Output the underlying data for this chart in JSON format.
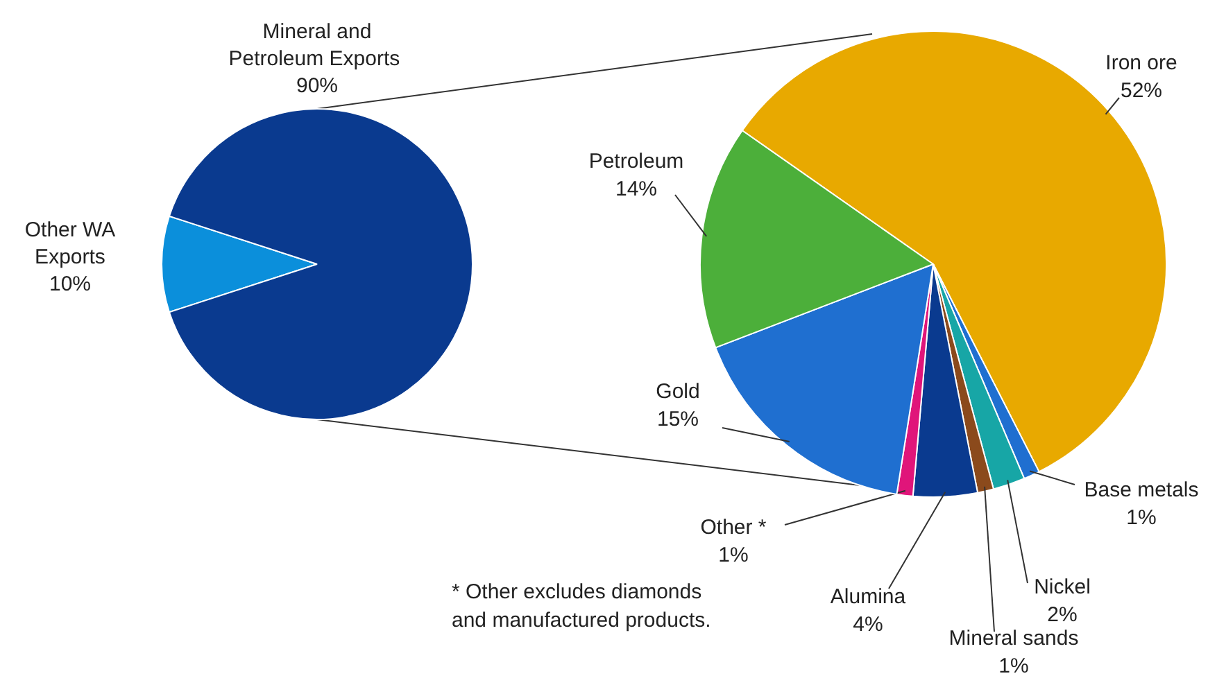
{
  "chart_data": [
    {
      "type": "pie",
      "categories": [
        "Other WA\nExports",
        "Mineral and\nPetroleum  Exports"
      ],
      "values": [
        10,
        90
      ],
      "value_labels": [
        "10%",
        "90%"
      ],
      "colors": [
        "#0b8fdb",
        "#0a3a8f"
      ]
    },
    {
      "type": "pie",
      "categories": [
        "Iron ore",
        "Base metals",
        "Nickel",
        "Mineral sands",
        "Alumina",
        "Other *",
        "Gold",
        "Petroleum"
      ],
      "values": [
        52,
        1,
        2,
        1,
        4,
        1,
        15,
        14
      ],
      "value_labels": [
        "52%",
        "1%",
        "2%",
        "1%",
        "4%",
        "1%",
        "15%",
        "14%"
      ],
      "colors": [
        "#e8a900",
        "#1f6fd0",
        "#17a6a6",
        "#8b4a1c",
        "#0a3a8f",
        "#e0157a",
        "#1f6fd0",
        "#4caf3a"
      ],
      "annotations": [
        "* Other excludes diamonds\nand manufactured products."
      ]
    }
  ]
}
